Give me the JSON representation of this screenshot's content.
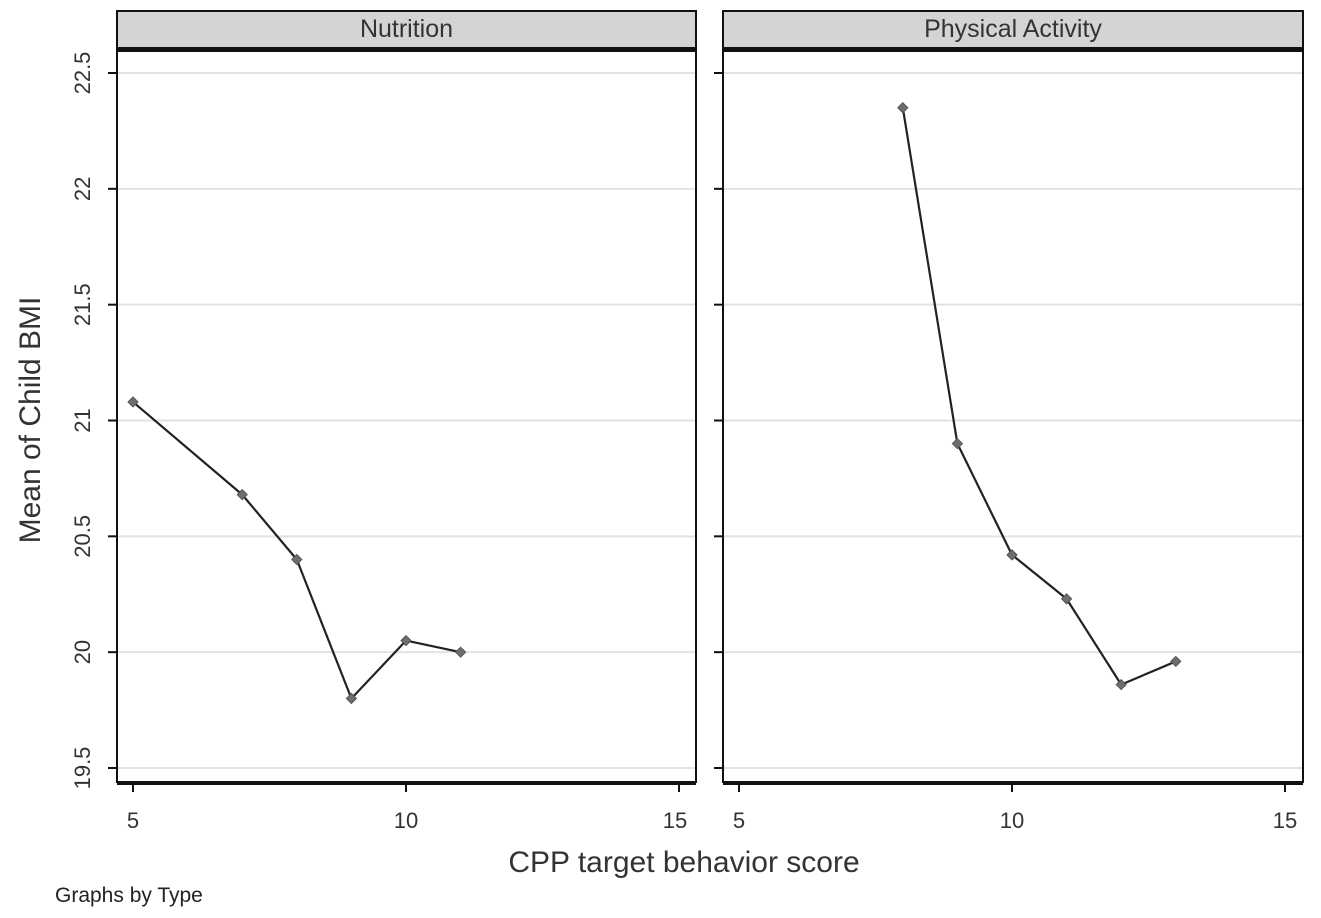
{
  "chart_data": {
    "type": "line",
    "xlabel": "CPP target behavior score",
    "ylabel": "Mean of Child BMI",
    "xlim": [
      5,
      15
    ],
    "ylim": [
      19.5,
      22.5
    ],
    "x_ticks": [
      "5",
      "10",
      "15"
    ],
    "y_ticks": [
      "19.5",
      "20",
      "20.5",
      "21",
      "21.5",
      "22",
      "22.5"
    ],
    "grid": true,
    "panels": [
      {
        "title": "Nutrition",
        "x": [
          5,
          7,
          8,
          9,
          10,
          11
        ],
        "y": [
          21.08,
          20.68,
          20.4,
          19.8,
          20.05,
          20.0
        ]
      },
      {
        "title": "Physical Activity",
        "x": [
          8,
          9,
          10,
          11,
          12,
          13
        ],
        "y": [
          22.35,
          20.9,
          20.42,
          20.23,
          19.86,
          19.96
        ]
      }
    ],
    "note": "Graphs by Type"
  },
  "colors": {
    "line": "#222222",
    "marker": "#6e6e6e",
    "header_fill": "#d4d4d4",
    "grid": "#e2e2e2"
  }
}
